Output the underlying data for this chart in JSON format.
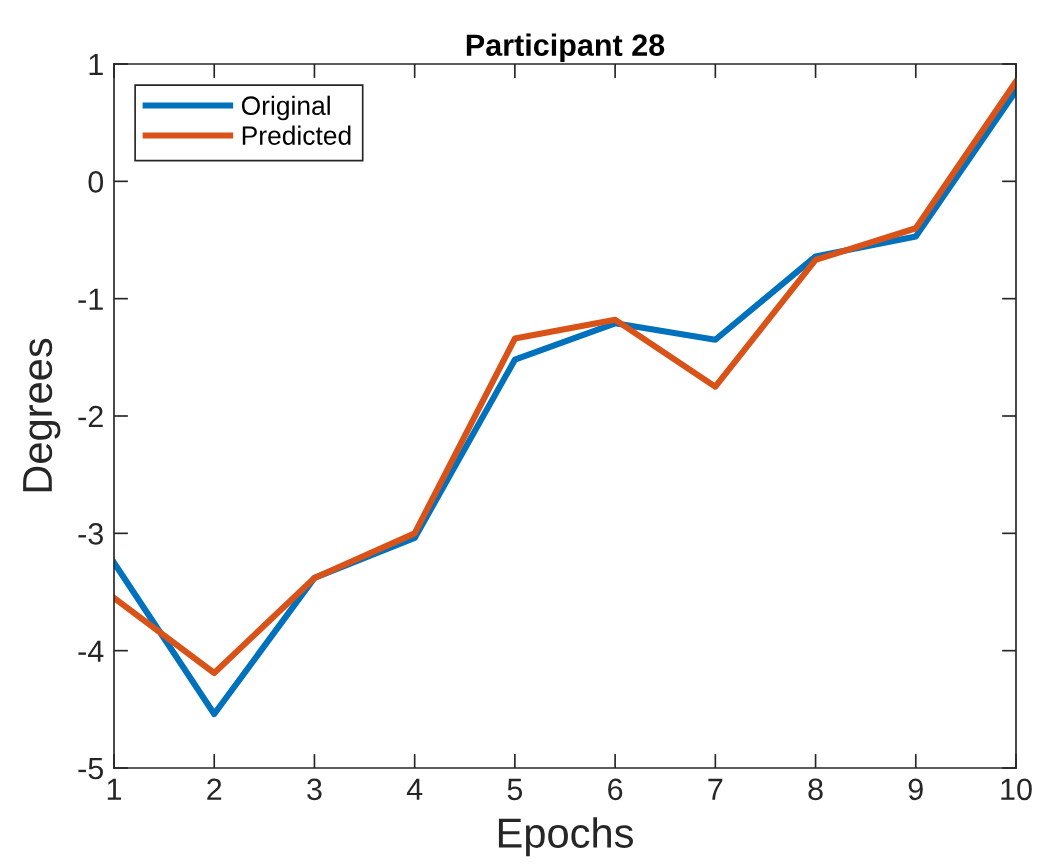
{
  "chart_data": {
    "type": "line",
    "title": "Participant 28",
    "xlabel": "Epochs",
    "ylabel": "Degrees",
    "x": [
      1,
      2,
      3,
      4,
      5,
      6,
      7,
      8,
      9,
      10
    ],
    "series": [
      {
        "name": "Original",
        "color": "#0072bd",
        "values": [
          -3.25,
          -4.54,
          -3.38,
          -3.04,
          -1.52,
          -1.21,
          -1.35,
          -0.64,
          -0.47,
          0.77
        ]
      },
      {
        "name": "Predicted",
        "color": "#d95319",
        "values": [
          -3.55,
          -4.19,
          -3.38,
          -3.0,
          -1.34,
          -1.18,
          -1.75,
          -0.67,
          -0.4,
          0.85
        ]
      }
    ],
    "xlim": [
      1,
      10
    ],
    "xticks": [
      1,
      2,
      3,
      4,
      5,
      6,
      7,
      8,
      9,
      10
    ],
    "ylim": [
      -5,
      1
    ],
    "yticks": [
      -5,
      -4,
      -3,
      -2,
      -1,
      0,
      1
    ],
    "grid": false,
    "legend": "top left",
    "marker": "none",
    "line_style": "solid"
  }
}
